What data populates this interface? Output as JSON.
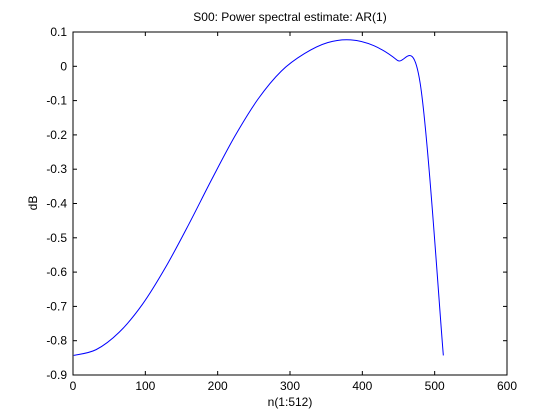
{
  "chart_data": {
    "type": "line",
    "title": "S00: Power spectral estimate: AR(1)",
    "xlabel": "n(1:512)",
    "ylabel": "dB",
    "xlim": [
      0,
      600
    ],
    "ylim": [
      -0.9,
      0.1
    ],
    "xticks": [
      0,
      100,
      200,
      300,
      400,
      500,
      600
    ],
    "xtick_labels": [
      "0",
      "100",
      "200",
      "300",
      "400",
      "500",
      "600"
    ],
    "yticks": [
      0.1,
      0,
      -0.1,
      -0.2,
      -0.3,
      -0.4,
      -0.5,
      -0.6,
      -0.7,
      -0.8,
      -0.9
    ],
    "ytick_labels": [
      "0.1",
      "0",
      "-0.1",
      "-0.2",
      "-0.3",
      "-0.4",
      "-0.5",
      "-0.6",
      "-0.7",
      "-0.8",
      "-0.9"
    ],
    "grid": false,
    "series": [
      {
        "color": "#0000ff",
        "x": [
          1,
          32,
          64,
          96,
          128,
          160,
          192,
          224,
          256,
          288,
          320,
          352,
          384,
          416,
          448,
          480,
          512
        ],
        "y": [
          -0.843,
          -0.826,
          -0.775,
          -0.694,
          -0.586,
          -0.461,
          -0.329,
          -0.203,
          -0.095,
          -0.014,
          0.037,
          0.069,
          0.077,
          0.06,
          0.018,
          -0.05,
          -0.843
        ]
      }
    ]
  }
}
